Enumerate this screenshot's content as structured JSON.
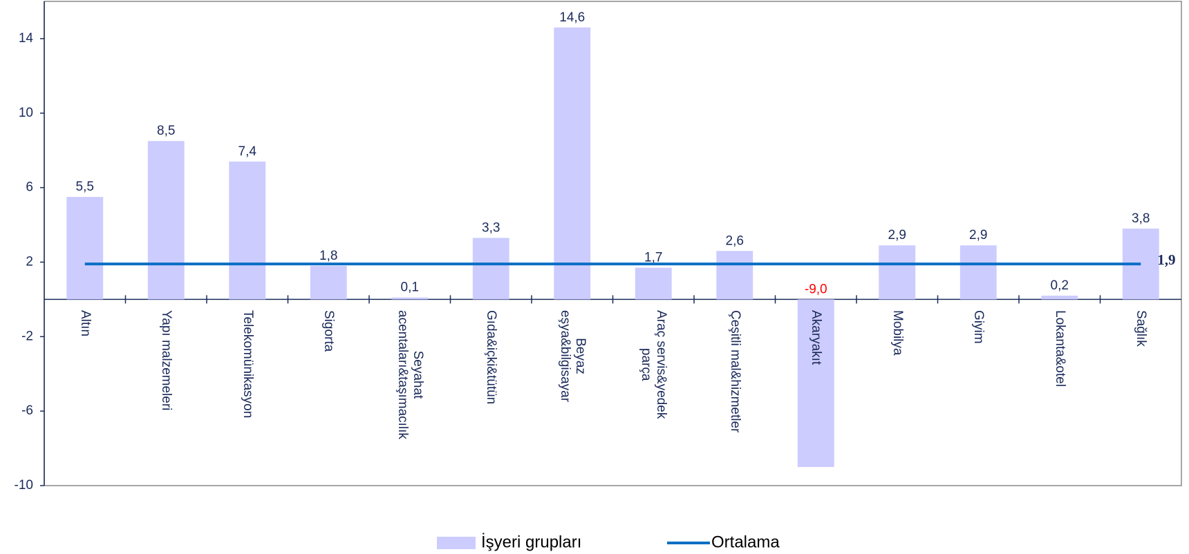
{
  "chart_data": {
    "type": "bar",
    "categories": [
      "Altın",
      "Yapı malzemeleri",
      "Telekomünikasyon",
      "Sigorta",
      "Seyahat\nacentaları&taşımacılık",
      "Gıda&içki&tütün",
      "Beyaz\neşya&bilgisayar",
      "Araç servis&yedek\nparça",
      "Çeşitli mal&hizmetler",
      "Akaryakıt",
      "Mobilya",
      "Giyim",
      "Lokanta&otel",
      "Sağlık"
    ],
    "series": [
      {
        "name": "İşyeri grupları",
        "type": "bar",
        "color": "#ccccff",
        "values": [
          5.5,
          8.5,
          7.4,
          1.8,
          0.1,
          3.3,
          14.6,
          1.7,
          2.6,
          -9.0,
          2.9,
          2.9,
          0.2,
          3.8
        ],
        "value_labels": [
          "5,5",
          "8,5",
          "7,4",
          "1,8",
          "0,1",
          "3,3",
          "14,6",
          "1,7",
          "2,6",
          "-9,0",
          "2,9",
          "2,9",
          "0,2",
          "3,8"
        ]
      },
      {
        "name": "Ortalama",
        "type": "line",
        "color": "#0b6fc4",
        "values": [
          1.9,
          1.9,
          1.9,
          1.9,
          1.9,
          1.9,
          1.9,
          1.9,
          1.9,
          1.9,
          1.9,
          1.9,
          1.9,
          1.9
        ],
        "end_label": "1,9"
      }
    ],
    "negative_label_color": "#ff0000",
    "ylim": [
      -10,
      16
    ],
    "yticks": [
      -10,
      -6,
      -2,
      2,
      6,
      10,
      14
    ]
  }
}
